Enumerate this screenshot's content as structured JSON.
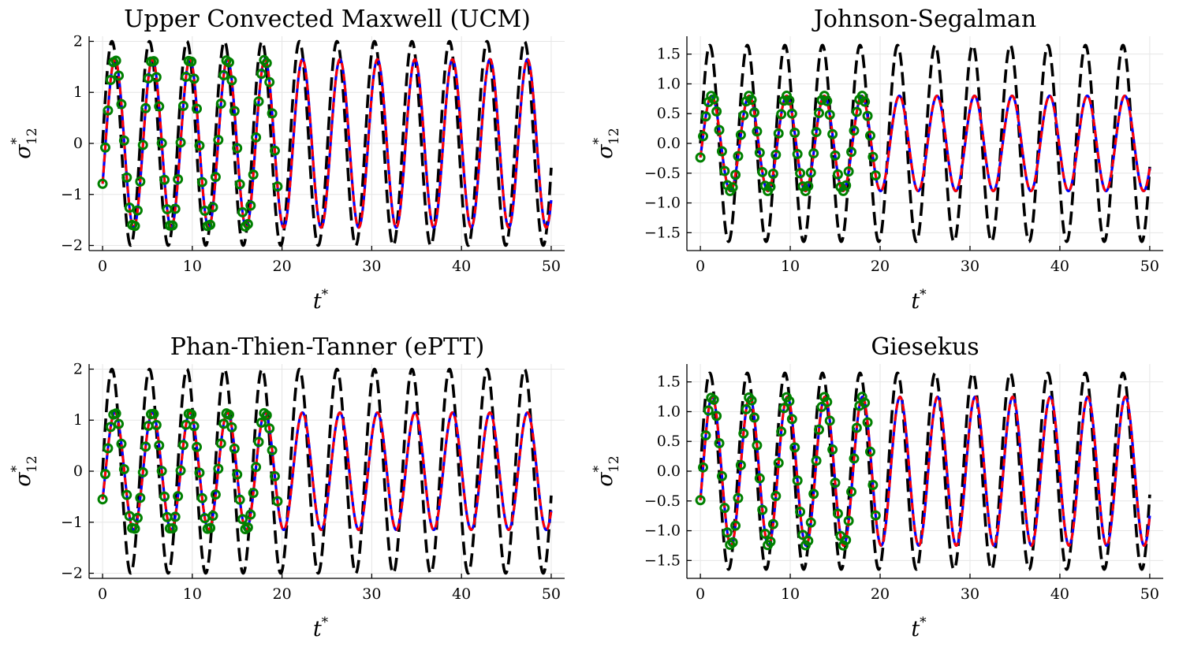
{
  "chart_data": [
    {
      "type": "line",
      "title": "Upper Convected Maxwell (UCM)",
      "xlabel": "t*",
      "ylabel": "σ*12",
      "xlim": [
        -1.5,
        51.5
      ],
      "ylim": [
        -2.1,
        2.1
      ],
      "xticks": [
        0,
        10,
        20,
        30,
        40,
        50
      ],
      "yticks": [
        -2,
        -1,
        0,
        1,
        2
      ],
      "ytick_labels": [
        "−2",
        "−1",
        "0",
        "1",
        "2"
      ],
      "grid": true,
      "legend": "none",
      "period": 4.18,
      "series": [
        {
          "style": "black-dashed",
          "color": "#000000",
          "amplitude": 2.0,
          "phase_lag": 0.0,
          "x_range": [
            0,
            50
          ]
        },
        {
          "style": "blue-solid",
          "color": "#0000ff",
          "amplitude": 1.65,
          "phase_lag": 0.5,
          "x_range": [
            0,
            50
          ]
        },
        {
          "style": "red-solid",
          "color": "#ff0000",
          "amplitude": 1.65,
          "phase_lag": 0.5,
          "x_range": [
            0,
            50
          ]
        },
        {
          "style": "green-circles",
          "color": "#008000",
          "amplitude": 1.65,
          "phase_lag": 0.5,
          "x_range": [
            0,
            19.5
          ],
          "step": 0.3
        }
      ]
    },
    {
      "type": "line",
      "title": "Johnson-Segalman",
      "xlabel": "t*",
      "ylabel": "σ*12",
      "xlim": [
        -1.5,
        51.5
      ],
      "ylim": [
        -1.8,
        1.8
      ],
      "xticks": [
        0,
        10,
        20,
        30,
        40,
        50
      ],
      "yticks": [
        -1.5,
        -1.0,
        -0.5,
        0.0,
        0.5,
        1.0,
        1.5
      ],
      "ytick_labels": [
        "−1.5",
        "−1.0",
        "−0.5",
        "0.0",
        "0.5",
        "1.0",
        "1.5"
      ],
      "grid": true,
      "legend": "none",
      "period": 4.18,
      "series": [
        {
          "style": "black-dashed",
          "color": "#000000",
          "amplitude": 1.65,
          "phase_lag": 0.0,
          "x_range": [
            0,
            50
          ]
        },
        {
          "style": "blue-solid",
          "color": "#0000ff",
          "amplitude": 0.8,
          "phase_lag": 0.3,
          "x_range": [
            0,
            50
          ]
        },
        {
          "style": "red-solid",
          "color": "#ff0000",
          "amplitude": 0.8,
          "phase_lag": 0.3,
          "x_range": [
            0,
            50
          ]
        },
        {
          "style": "green-circles",
          "color": "#008000",
          "amplitude": 0.8,
          "phase_lag": 0.3,
          "x_range": [
            0,
            19.5
          ],
          "step": 0.3
        }
      ]
    },
    {
      "type": "line",
      "title": "Phan-Thien-Tanner (ePTT)",
      "xlabel": "t*",
      "ylabel": "σ*12",
      "xlim": [
        -1.5,
        51.5
      ],
      "ylim": [
        -2.1,
        2.1
      ],
      "xticks": [
        0,
        10,
        20,
        30,
        40,
        50
      ],
      "yticks": [
        -2,
        -1,
        0,
        1,
        2
      ],
      "ytick_labels": [
        "−2",
        "−1",
        "0",
        "1",
        "2"
      ],
      "grid": true,
      "legend": "none",
      "period": 4.18,
      "series": [
        {
          "style": "black-dashed",
          "color": "#000000",
          "amplitude": 2.0,
          "phase_lag": 0.0,
          "x_range": [
            0,
            50
          ]
        },
        {
          "style": "blue-solid",
          "color": "#0000ff",
          "amplitude": 1.15,
          "phase_lag": 0.5,
          "x_range": [
            0,
            50
          ]
        },
        {
          "style": "red-solid",
          "color": "#ff0000",
          "amplitude": 1.15,
          "phase_lag": 0.5,
          "x_range": [
            0,
            50
          ]
        },
        {
          "style": "green-circles",
          "color": "#008000",
          "amplitude": 1.15,
          "phase_lag": 0.5,
          "x_range": [
            0,
            19.5
          ],
          "step": 0.3
        }
      ]
    },
    {
      "type": "line",
      "title": "Giesekus",
      "xlabel": "t*",
      "ylabel": "σ*12",
      "xlim": [
        -1.5,
        51.5
      ],
      "ylim": [
        -1.8,
        1.8
      ],
      "xticks": [
        0,
        10,
        20,
        30,
        40,
        50
      ],
      "yticks": [
        -1.5,
        -1.0,
        -0.5,
        0.0,
        0.5,
        1.0,
        1.5
      ],
      "ytick_labels": [
        "−1.5",
        "−1.0",
        "−0.5",
        "0.0",
        "0.5",
        "1.0",
        "1.5"
      ],
      "grid": true,
      "legend": "none",
      "period": 4.18,
      "series": [
        {
          "style": "black-dashed",
          "color": "#000000",
          "amplitude": 1.65,
          "phase_lag": 0.0,
          "x_range": [
            0,
            50
          ]
        },
        {
          "style": "blue-solid",
          "color": "#0000ff",
          "amplitude": 1.25,
          "phase_lag": 0.4,
          "x_range": [
            0,
            50
          ]
        },
        {
          "style": "red-solid",
          "color": "#ff0000",
          "amplitude": 1.25,
          "phase_lag": 0.4,
          "x_range": [
            0,
            50
          ]
        },
        {
          "style": "green-circles",
          "color": "#008000",
          "amplitude": 1.25,
          "phase_lag": 0.4,
          "x_range": [
            0,
            19.5
          ],
          "step": 0.3
        }
      ]
    }
  ]
}
